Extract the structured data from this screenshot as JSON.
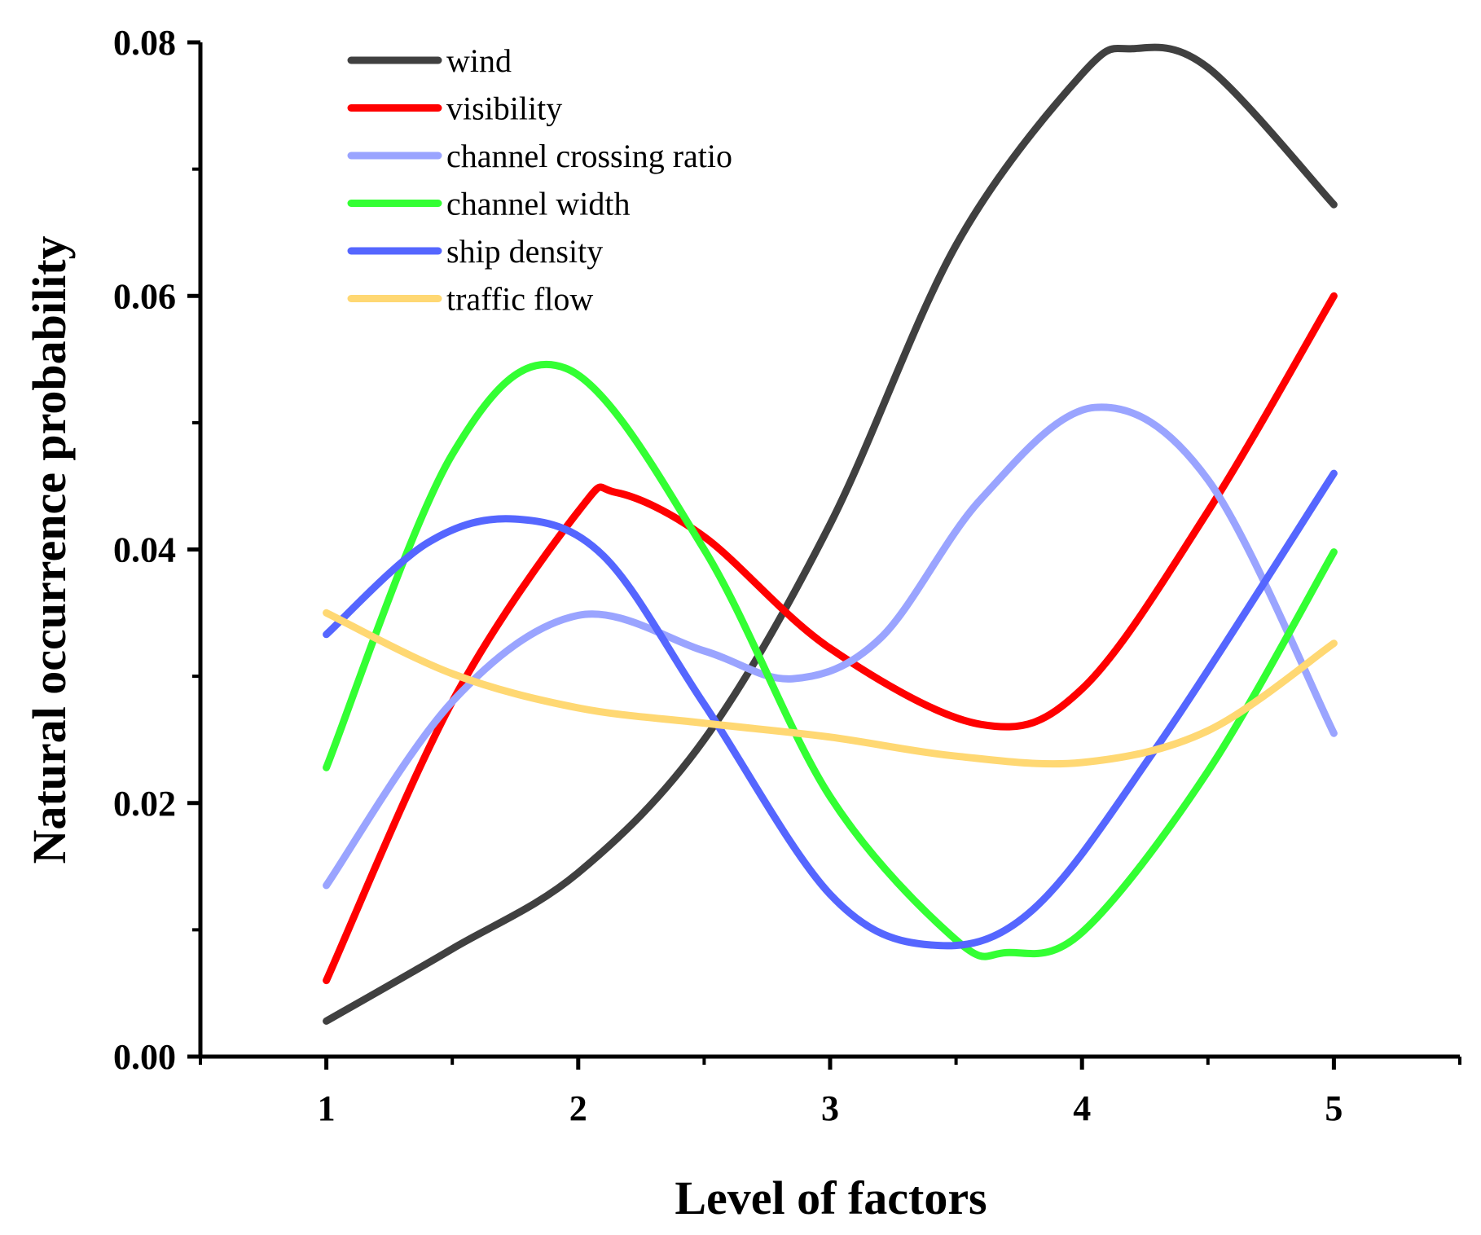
{
  "chart_data": {
    "type": "line",
    "title": "",
    "xlabel": "Level of factors",
    "ylabel": "Natural occurrence probability",
    "x": [
      1,
      2,
      3,
      4,
      5
    ],
    "xlim": [
      0.5,
      5.5
    ],
    "ylim": [
      0,
      0.08
    ],
    "xticks": [
      1,
      2,
      3,
      4,
      5
    ],
    "xtick_labels": [
      "1",
      "2",
      "3",
      "4",
      "5"
    ],
    "yticks": [
      0,
      0.02,
      0.04,
      0.06,
      0.08
    ],
    "ytick_labels": [
      "0.00",
      "0.02",
      "0.04",
      "0.06",
      "0.08"
    ],
    "grid": false,
    "legend_position": "top-left",
    "series": [
      {
        "name": "wind",
        "color": "#404040",
        "points": [
          [
            1,
            0.0028
          ],
          [
            1.5,
            0.0085
          ],
          [
            2,
            0.0145
          ],
          [
            2.5,
            0.025
          ],
          [
            3,
            0.042
          ],
          [
            3.5,
            0.064
          ],
          [
            4,
            0.0775
          ],
          [
            4.2,
            0.0795
          ],
          [
            4.5,
            0.078
          ],
          [
            5,
            0.0672
          ]
        ]
      },
      {
        "name": "visibility",
        "color": "#ff0000",
        "points": [
          [
            1,
            0.006
          ],
          [
            1.5,
            0.028
          ],
          [
            2,
            0.043
          ],
          [
            2.15,
            0.0445
          ],
          [
            2.5,
            0.041
          ],
          [
            3,
            0.0322
          ],
          [
            3.6,
            0.0262
          ],
          [
            4,
            0.029
          ],
          [
            4.5,
            0.043
          ],
          [
            5,
            0.06
          ]
        ]
      },
      {
        "name": "channel crossing ratio",
        "color": "#9aa4ff",
        "points": [
          [
            1,
            0.0135
          ],
          [
            1.5,
            0.028
          ],
          [
            2,
            0.0348
          ],
          [
            2.5,
            0.032
          ],
          [
            2.85,
            0.0298
          ],
          [
            3.2,
            0.033
          ],
          [
            3.6,
            0.044
          ],
          [
            4.05,
            0.0512
          ],
          [
            4.5,
            0.0455
          ],
          [
            5,
            0.0255
          ]
        ]
      },
      {
        "name": "channel width",
        "color": "#33ff33",
        "points": [
          [
            1,
            0.0228
          ],
          [
            1.5,
            0.0475
          ],
          [
            1.95,
            0.0543
          ],
          [
            2.5,
            0.04
          ],
          [
            3,
            0.0205
          ],
          [
            3.5,
            0.0092
          ],
          [
            3.7,
            0.0082
          ],
          [
            4,
            0.0098
          ],
          [
            4.5,
            0.0225
          ],
          [
            5,
            0.0398
          ]
        ]
      },
      {
        "name": "ship density",
        "color": "#5566ff",
        "points": [
          [
            1,
            0.0333
          ],
          [
            1.4,
            0.0405
          ],
          [
            1.75,
            0.0424
          ],
          [
            2.1,
            0.0395
          ],
          [
            2.5,
            0.0278
          ],
          [
            3,
            0.0128
          ],
          [
            3.4,
            0.0088
          ],
          [
            3.8,
            0.0115
          ],
          [
            4.3,
            0.0245
          ],
          [
            5,
            0.046
          ]
        ]
      },
      {
        "name": "traffic flow",
        "color": "#ffd873",
        "points": [
          [
            1,
            0.035
          ],
          [
            1.5,
            0.0302
          ],
          [
            2,
            0.0275
          ],
          [
            2.5,
            0.0263
          ],
          [
            3,
            0.0252
          ],
          [
            3.5,
            0.0237
          ],
          [
            4,
            0.0232
          ],
          [
            4.5,
            0.0257
          ],
          [
            5,
            0.0326
          ]
        ]
      }
    ]
  }
}
